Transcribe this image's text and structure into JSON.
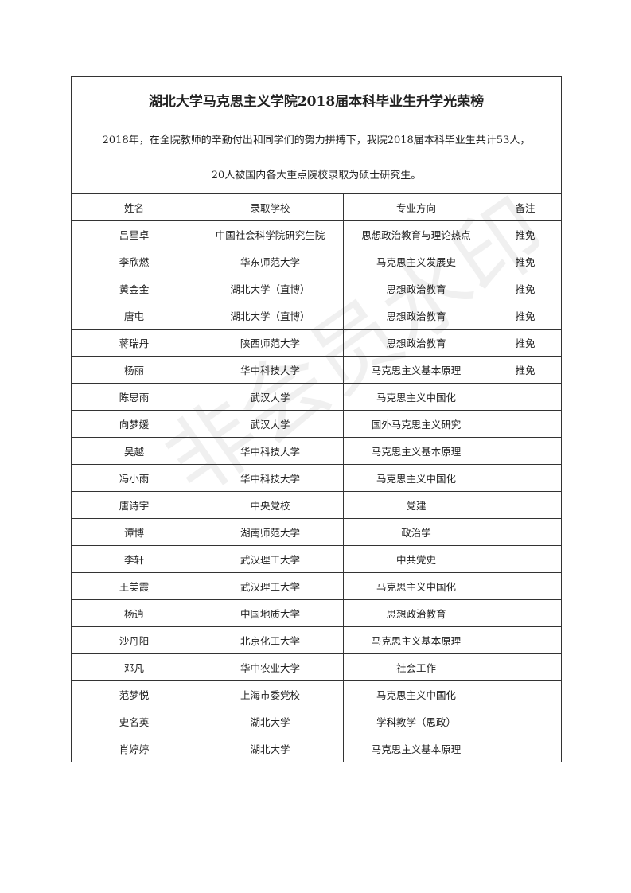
{
  "table": {
    "title": "湖北大学马克思主义学院2018届本科毕业生升学光荣榜",
    "intro": [
      "2018年，在全院教师的辛勤付出和同学们的努力拼搏下，我院2018届本科毕业生共计53人，",
      "20人被国内各大重点院校录取为硕士研究生。"
    ],
    "headers": [
      "姓名",
      "录取学校",
      "专业方向",
      "备注"
    ],
    "rows": [
      [
        "吕星卓",
        "中国社会科学院研究生院",
        "思想政治教育与理论热点",
        "推免"
      ],
      [
        "李欣燃",
        "华东师范大学",
        "马克思主义发展史",
        "推免"
      ],
      [
        "黄金金",
        "湖北大学（直博）",
        "思想政治教育",
        "推免"
      ],
      [
        "唐屯",
        "湖北大学（直博）",
        "思想政治教育",
        "推免"
      ],
      [
        "蒋瑞丹",
        "陕西师范大学",
        "思想政治教育",
        "推免"
      ],
      [
        "杨丽",
        "华中科技大学",
        "马克思主义基本原理",
        "推免"
      ],
      [
        "陈思雨",
        "武汉大学",
        "马克思主义中国化"
      ],
      [
        "向梦媛",
        "武汉大学",
        "国外马克思主义研究"
      ],
      [
        "吴越",
        "华中科技大学",
        "马克思主义基本原理"
      ],
      [
        "冯小雨",
        "华中科技大学",
        "马克思主义中国化"
      ],
      [
        "唐诗宇",
        "中央党校",
        "党建"
      ],
      [
        "谭博",
        "湖南师范大学",
        "政治学"
      ],
      [
        "李轩",
        "武汉理工大学",
        "中共党史"
      ],
      [
        "王美霞",
        "武汉理工大学",
        "马克思主义中国化"
      ],
      [
        "杨逍",
        "中国地质大学",
        "思想政治教育"
      ],
      [
        "沙丹阳",
        "北京化工大学",
        "马克思主义基本原理"
      ],
      [
        "邓凡",
        "华中农业大学",
        "社会工作"
      ],
      [
        "范梦悦",
        "上海市委党校",
        "马克思主义中国化"
      ],
      [
        "史名英",
        "湖北大学",
        "学科教学（思政）"
      ],
      [
        "肖婷婷",
        "湖北大学",
        "马克思主义基本原理"
      ]
    ]
  },
  "watermark": "非会员水印"
}
